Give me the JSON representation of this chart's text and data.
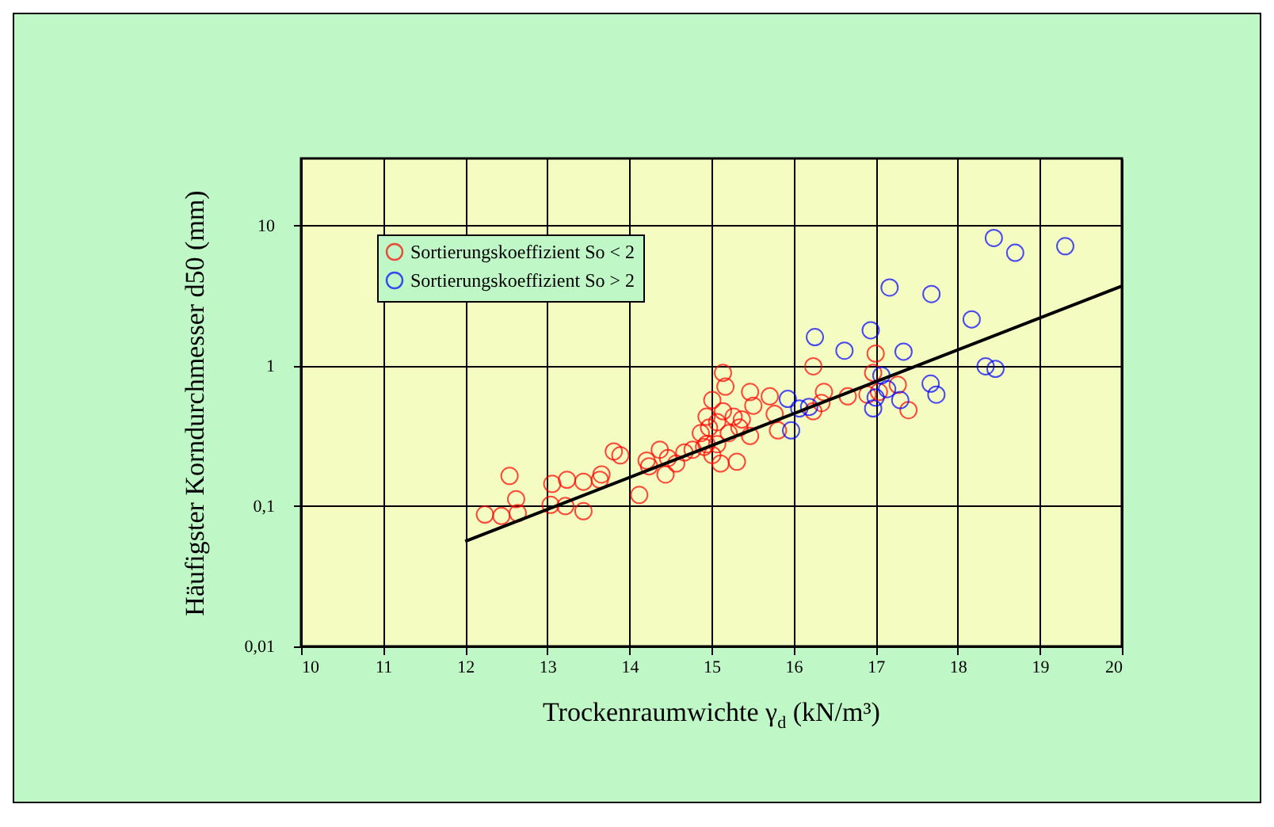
{
  "chart_data": {
    "type": "scatter",
    "xlabel": "Trockenraumwichte γ$_{d}$ (kN/m³)",
    "ylabel": "Häufigster Korndurchmesser d50 (mm)",
    "xlim": [
      10,
      20
    ],
    "xticks": [
      10,
      11,
      12,
      13,
      14,
      15,
      16,
      17,
      18,
      19,
      20
    ],
    "ylim": [
      0.01,
      30
    ],
    "yticks": [
      {
        "value": 0.01,
        "label": "0,01"
      },
      {
        "value": 0.1,
        "label": "0,1"
      },
      1,
      10
    ],
    "log": "y",
    "grid": true,
    "legend": "top left",
    "marker": "circle",
    "series": [
      {
        "name": "Sortierungskoeffizient So < 2",
        "color": "#ff0000",
        "x": [
          12.24,
          12.44,
          12.64,
          12.54,
          12.62,
          13.06,
          13.04,
          13.24,
          13.44,
          13.22,
          13.44,
          13.66,
          13.64,
          13.81,
          13.89,
          14.12,
          14.21,
          14.24,
          14.37,
          14.44,
          14.47,
          14.57,
          14.67,
          14.77,
          14.94,
          15.01,
          14.97,
          15.07,
          15.14,
          15.17,
          15.11,
          15.31,
          15.21,
          15.27,
          15.37,
          15.47,
          15.47,
          15.51,
          15.01,
          14.91,
          14.87,
          15.71,
          15.77,
          15.81,
          16.24,
          16.24,
          16.37,
          16.34,
          16.66,
          16.9,
          17.0,
          16.97,
          17.04,
          17.27,
          17.4,
          14.94,
          15.14,
          15.34,
          15.07
        ],
        "values": [
          0.087,
          0.085,
          0.089,
          0.164,
          0.112,
          0.144,
          0.102,
          0.154,
          0.149,
          0.1,
          0.092,
          0.168,
          0.154,
          0.245,
          0.23,
          0.12,
          0.211,
          0.192,
          0.252,
          0.168,
          0.22,
          0.201,
          0.241,
          0.252,
          0.276,
          0.569,
          0.362,
          0.396,
          0.89,
          0.71,
          0.201,
          0.207,
          0.331,
          0.433,
          0.414,
          0.65,
          0.316,
          0.519,
          0.231,
          0.264,
          0.331,
          0.605,
          0.453,
          0.346,
          0.99,
          0.474,
          0.65,
          0.543,
          0.605,
          0.622,
          1.22,
          0.89,
          0.65,
          0.731,
          0.483,
          0.433,
          0.474,
          0.362,
          0.276
        ]
      },
      {
        "name": "Sortierungskoeffizient So > 2",
        "color": "#0000ff",
        "x": [
          15.93,
          15.97,
          16.07,
          16.19,
          16.26,
          16.62,
          16.94,
          17.17,
          17.34,
          17.07,
          16.97,
          17.0,
          17.14,
          17.3,
          17.67,
          17.74,
          17.68,
          18.17,
          18.34,
          18.46,
          18.44,
          18.7,
          19.31
        ],
        "values": [
          0.58,
          0.346,
          0.496,
          0.509,
          1.6,
          1.28,
          1.79,
          3.61,
          1.26,
          0.853,
          0.496,
          0.594,
          0.681,
          0.569,
          0.745,
          0.622,
          3.24,
          2.14,
          0.99,
          0.95,
          8.13,
          6.38,
          7.11
        ]
      },
      {
        "type": "line",
        "marker": "none",
        "color": "#000000",
        "x": [
          12,
          20
        ],
        "values": [
          0.056,
          3.7
        ]
      }
    ]
  }
}
